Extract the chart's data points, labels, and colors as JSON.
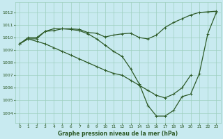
{
  "title": "Graphe pression niveau de la mer (hPa)",
  "bg_color": "#c8eaf0",
  "grid_color": "#9ecfbe",
  "line_color": "#2d5a27",
  "xlim": [
    -0.5,
    23.5
  ],
  "ylim": [
    1003.2,
    1012.8
  ],
  "yticks": [
    1004,
    1005,
    1006,
    1007,
    1008,
    1009,
    1010,
    1011,
    1012
  ],
  "xticks": [
    0,
    1,
    2,
    3,
    4,
    5,
    6,
    7,
    8,
    9,
    10,
    11,
    12,
    13,
    14,
    15,
    16,
    17,
    18,
    19,
    20,
    21,
    22,
    23
  ],
  "series1_x": [
    0,
    1,
    2,
    3,
    4,
    5,
    6,
    7,
    8,
    9,
    10,
    11,
    12,
    13,
    14,
    15,
    16,
    17,
    18,
    19,
    20,
    21,
    22,
    23
  ],
  "series1_y": [
    1009.5,
    1010.0,
    1010.0,
    1010.5,
    1010.55,
    1010.7,
    1010.7,
    1010.65,
    1010.4,
    1010.35,
    1010.05,
    1010.2,
    1010.3,
    1010.35,
    1010.0,
    1009.9,
    1010.2,
    1010.8,
    1011.2,
    1011.5,
    1011.8,
    1012.0,
    1012.05,
    1012.1
  ],
  "series2_x": [
    0,
    1,
    2,
    3,
    4,
    5,
    6,
    7,
    8,
    9,
    10,
    11,
    12,
    13,
    14,
    15,
    16,
    17,
    18,
    19,
    20,
    21,
    22,
    23
  ],
  "series2_y": [
    1009.5,
    1009.9,
    1009.9,
    1010.5,
    1010.7,
    1010.7,
    1010.65,
    1010.55,
    1010.3,
    1009.9,
    1009.4,
    1008.9,
    1008.5,
    1007.5,
    1006.3,
    1004.6,
    1003.75,
    1003.75,
    1004.2,
    1005.3,
    1005.5,
    1007.1,
    1010.3,
    1012.0
  ],
  "series3_x": [
    0,
    1,
    2,
    3,
    4,
    5,
    6,
    7,
    8,
    9,
    10,
    11,
    12,
    13,
    14,
    15,
    16,
    17,
    18,
    19,
    20
  ],
  "series3_y": [
    1009.5,
    1009.9,
    1009.7,
    1009.5,
    1009.2,
    1008.9,
    1008.6,
    1008.3,
    1008.0,
    1007.7,
    1007.4,
    1007.15,
    1007.0,
    1006.6,
    1006.2,
    1005.8,
    1005.4,
    1005.2,
    1005.5,
    1006.0,
    1007.0
  ]
}
